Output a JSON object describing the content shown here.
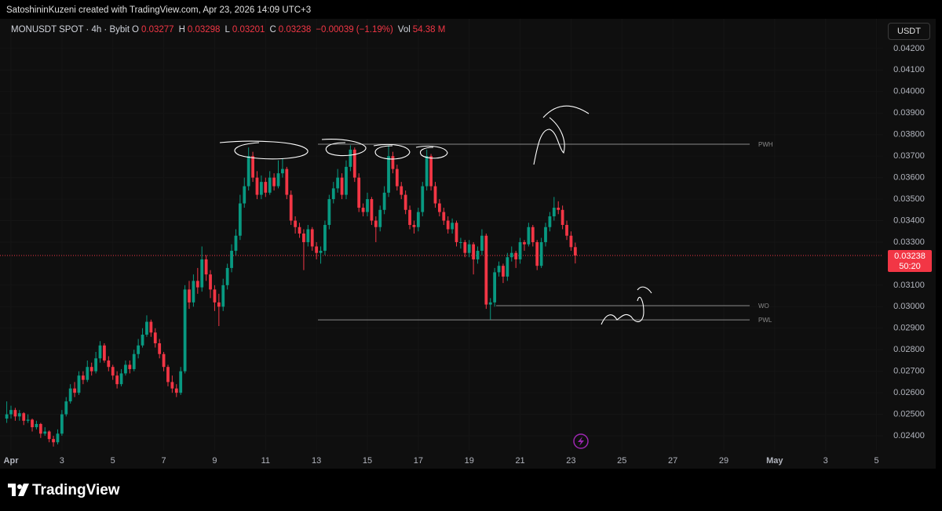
{
  "header": {
    "credit": "SatoshininKuzeni created with TradingView.com, Apr 23, 2026 14:09 UTC+3",
    "symbol": "MONUSDT SPOT · 4h · Bybit",
    "fields": [
      {
        "key": "O",
        "value": "0.03277"
      },
      {
        "key": "H",
        "value": "0.03298"
      },
      {
        "key": "L",
        "value": "0.03201"
      },
      {
        "key": "C",
        "value": "0.03238"
      }
    ],
    "change": "−0.00039 (−1.19%)",
    "vol_key": "Vol",
    "vol_value": "54.38 M",
    "unit": "USDT"
  },
  "footer": {
    "brand": "TradingView"
  },
  "chart_data": {
    "type": "candlestick",
    "up_color": "#089981",
    "down_color": "#f23645",
    "ylim": [
      0.02331,
      0.04338
    ],
    "yticks": [
      {
        "value": 0.042,
        "label": "0.04200"
      },
      {
        "value": 0.041,
        "label": "0.04100"
      },
      {
        "value": 0.04,
        "label": "0.04000"
      },
      {
        "value": 0.039,
        "label": "0.03900"
      },
      {
        "value": 0.038,
        "label": "0.03800"
      },
      {
        "value": 0.037,
        "label": "0.03700"
      },
      {
        "value": 0.036,
        "label": "0.03600"
      },
      {
        "value": 0.035,
        "label": "0.03500"
      },
      {
        "value": 0.034,
        "label": "0.03400"
      },
      {
        "value": 0.033,
        "label": "0.03300"
      },
      {
        "value": 0.031,
        "label": "0.03100"
      },
      {
        "value": 0.03,
        "label": "0.03000"
      },
      {
        "value": 0.029,
        "label": "0.02900"
      },
      {
        "value": 0.028,
        "label": "0.02800"
      },
      {
        "value": 0.027,
        "label": "0.02700"
      },
      {
        "value": 0.026,
        "label": "0.02600"
      },
      {
        "value": 0.025,
        "label": "0.02500"
      },
      {
        "value": 0.024,
        "label": "0.02400"
      }
    ],
    "xlim": [
      -0.432,
      34.26
    ],
    "xticks": [
      {
        "value": 0,
        "label": "Apr"
      },
      {
        "value": 2,
        "label": "3"
      },
      {
        "value": 4,
        "label": "5"
      },
      {
        "value": 6,
        "label": "7"
      },
      {
        "value": 8,
        "label": "9"
      },
      {
        "value": 10,
        "label": "11"
      },
      {
        "value": 12,
        "label": "13"
      },
      {
        "value": 14,
        "label": "15"
      },
      {
        "value": 16,
        "label": "17"
      },
      {
        "value": 18,
        "label": "19"
      },
      {
        "value": 20,
        "label": "21"
      },
      {
        "value": 22,
        "label": "23"
      },
      {
        "value": 24,
        "label": "25"
      },
      {
        "value": 26,
        "label": "27"
      },
      {
        "value": 28,
        "label": "29"
      },
      {
        "value": 30,
        "label": "May"
      },
      {
        "value": 32,
        "label": "3"
      },
      {
        "value": 34,
        "label": "5"
      }
    ],
    "last_price": 0.03238,
    "countdown": "50:20",
    "levels": [
      {
        "label": "PWH",
        "value": 0.03755
      },
      {
        "label": "WO",
        "value": 0.03005
      },
      {
        "label": "PWL",
        "value": 0.02939
      }
    ],
    "ohlc": [
      [
        0.0248,
        0.0256,
        0.0246,
        0.025
      ],
      [
        0.025,
        0.0254,
        0.0248,
        0.0252
      ],
      [
        0.0252,
        0.0253,
        0.0247,
        0.0249
      ],
      [
        0.0249,
        0.0252,
        0.0247,
        0.02505
      ],
      [
        0.02505,
        0.0251,
        0.0245,
        0.0247
      ],
      [
        0.0247,
        0.025,
        0.0246,
        0.02475
      ],
      [
        0.02475,
        0.0248,
        0.0242,
        0.0244
      ],
      [
        0.0244,
        0.0247,
        0.0243,
        0.02455
      ],
      [
        0.02455,
        0.0246,
        0.0239,
        0.0241
      ],
      [
        0.0241,
        0.0244,
        0.024,
        0.0242
      ],
      [
        0.0242,
        0.02425,
        0.0237,
        0.02385
      ],
      [
        0.02385,
        0.024,
        0.0235,
        0.0237
      ],
      [
        0.0237,
        0.0243,
        0.0236,
        0.0241
      ],
      [
        0.0241,
        0.0252,
        0.024,
        0.025
      ],
      [
        0.025,
        0.0258,
        0.0249,
        0.0256
      ],
      [
        0.0256,
        0.0264,
        0.0255,
        0.0262
      ],
      [
        0.0262,
        0.0265,
        0.0258,
        0.026
      ],
      [
        0.026,
        0.027,
        0.0259,
        0.0268
      ],
      [
        0.0268,
        0.027,
        0.0264,
        0.0266
      ],
      [
        0.0266,
        0.0275,
        0.0265,
        0.0272
      ],
      [
        0.0272,
        0.0274,
        0.0268,
        0.027
      ],
      [
        0.027,
        0.0279,
        0.0269,
        0.0276
      ],
      [
        0.0276,
        0.0284,
        0.0274,
        0.0282
      ],
      [
        0.0282,
        0.0283,
        0.0274,
        0.0275
      ],
      [
        0.0275,
        0.0277,
        0.027,
        0.0272
      ],
      [
        0.0272,
        0.0273,
        0.0266,
        0.0268
      ],
      [
        0.0268,
        0.027,
        0.0262,
        0.0264
      ],
      [
        0.0264,
        0.0271,
        0.0263,
        0.0269
      ],
      [
        0.0269,
        0.0275,
        0.0268,
        0.0273
      ],
      [
        0.0273,
        0.0275,
        0.0269,
        0.0271
      ],
      [
        0.0271,
        0.028,
        0.027,
        0.0278
      ],
      [
        0.0278,
        0.0285,
        0.0276,
        0.0282
      ],
      [
        0.0282,
        0.029,
        0.0281,
        0.0287
      ],
      [
        0.0287,
        0.0296,
        0.0286,
        0.0293
      ],
      [
        0.0293,
        0.0294,
        0.0286,
        0.0288
      ],
      [
        0.0288,
        0.029,
        0.0281,
        0.0283
      ],
      [
        0.0283,
        0.0285,
        0.0276,
        0.0278
      ],
      [
        0.0278,
        0.0279,
        0.027,
        0.0272
      ],
      [
        0.0272,
        0.0273,
        0.0263,
        0.0265
      ],
      [
        0.0265,
        0.0268,
        0.026,
        0.0262
      ],
      [
        0.0262,
        0.0264,
        0.0258,
        0.026
      ],
      [
        0.026,
        0.0272,
        0.0259,
        0.027
      ],
      [
        0.027,
        0.031,
        0.0269,
        0.0308
      ],
      [
        0.0308,
        0.0312,
        0.0299,
        0.0302
      ],
      [
        0.0302,
        0.0315,
        0.03,
        0.0312
      ],
      [
        0.0312,
        0.0318,
        0.0306,
        0.0309
      ],
      [
        0.0309,
        0.0328,
        0.0307,
        0.0322
      ],
      [
        0.0322,
        0.0324,
        0.0312,
        0.0315
      ],
      [
        0.0315,
        0.0317,
        0.0304,
        0.0308
      ],
      [
        0.0308,
        0.031,
        0.0298,
        0.0302
      ],
      [
        0.0302,
        0.0306,
        0.0291,
        0.03
      ],
      [
        0.03,
        0.0313,
        0.0298,
        0.031
      ],
      [
        0.031,
        0.032,
        0.0308,
        0.0318
      ],
      [
        0.0318,
        0.0329,
        0.0316,
        0.0326
      ],
      [
        0.0326,
        0.0336,
        0.0324,
        0.0333
      ],
      [
        0.0333,
        0.0352,
        0.0331,
        0.0348
      ],
      [
        0.0348,
        0.036,
        0.0346,
        0.0356
      ],
      [
        0.0356,
        0.0374,
        0.0354,
        0.037
      ],
      [
        0.037,
        0.0372,
        0.0358,
        0.036
      ],
      [
        0.036,
        0.0363,
        0.035,
        0.0352
      ],
      [
        0.0352,
        0.0361,
        0.035,
        0.0358
      ],
      [
        0.0358,
        0.036,
        0.0351,
        0.0353
      ],
      [
        0.0353,
        0.0363,
        0.0352,
        0.036
      ],
      [
        0.036,
        0.0362,
        0.0354,
        0.0356
      ],
      [
        0.0356,
        0.0368,
        0.0355,
        0.0362
      ],
      [
        0.0362,
        0.0369,
        0.036,
        0.0364
      ],
      [
        0.0364,
        0.0365,
        0.035,
        0.0352
      ],
      [
        0.0352,
        0.0354,
        0.0338,
        0.034
      ],
      [
        0.034,
        0.0342,
        0.0334,
        0.0337
      ],
      [
        0.0337,
        0.0339,
        0.0332,
        0.0334
      ],
      [
        0.0334,
        0.0336,
        0.0317,
        0.033
      ],
      [
        0.033,
        0.0338,
        0.0328,
        0.0336
      ],
      [
        0.0336,
        0.0337,
        0.0326,
        0.0328
      ],
      [
        0.0328,
        0.033,
        0.0322,
        0.0325
      ],
      [
        0.0325,
        0.0328,
        0.032,
        0.0326
      ],
      [
        0.0326,
        0.034,
        0.0324,
        0.0338
      ],
      [
        0.0338,
        0.0352,
        0.0336,
        0.035
      ],
      [
        0.035,
        0.0358,
        0.0348,
        0.0355
      ],
      [
        0.0355,
        0.0364,
        0.0353,
        0.036
      ],
      [
        0.036,
        0.0362,
        0.035,
        0.0352
      ],
      [
        0.0352,
        0.0368,
        0.035,
        0.0365
      ],
      [
        0.0365,
        0.0375,
        0.0363,
        0.0373
      ],
      [
        0.0373,
        0.0374,
        0.0358,
        0.036
      ],
      [
        0.036,
        0.0362,
        0.0344,
        0.0346
      ],
      [
        0.0346,
        0.0348,
        0.0342,
        0.0344
      ],
      [
        0.0344,
        0.0353,
        0.0342,
        0.035
      ],
      [
        0.035,
        0.0351,
        0.0338,
        0.034
      ],
      [
        0.034,
        0.0342,
        0.033,
        0.0337
      ],
      [
        0.0337,
        0.0347,
        0.0335,
        0.0345
      ],
      [
        0.0345,
        0.0356,
        0.0343,
        0.0353
      ],
      [
        0.0353,
        0.0375,
        0.0351,
        0.037
      ],
      [
        0.037,
        0.0372,
        0.0362,
        0.0364
      ],
      [
        0.0364,
        0.0366,
        0.0354,
        0.0356
      ],
      [
        0.0356,
        0.0358,
        0.035,
        0.0352
      ],
      [
        0.0352,
        0.0354,
        0.0343,
        0.0345
      ],
      [
        0.0345,
        0.0347,
        0.0336,
        0.0338
      ],
      [
        0.0338,
        0.034,
        0.0334,
        0.0337
      ],
      [
        0.0337,
        0.0346,
        0.0335,
        0.0344
      ],
      [
        0.0344,
        0.0358,
        0.0342,
        0.0356
      ],
      [
        0.0356,
        0.0373,
        0.0354,
        0.037
      ],
      [
        0.037,
        0.0371,
        0.0354,
        0.0356
      ],
      [
        0.0356,
        0.0358,
        0.0346,
        0.0348
      ],
      [
        0.0348,
        0.035,
        0.0342,
        0.0344
      ],
      [
        0.0344,
        0.0346,
        0.0338,
        0.034
      ],
      [
        0.034,
        0.0342,
        0.0334,
        0.0336
      ],
      [
        0.0336,
        0.0341,
        0.0334,
        0.0339
      ],
      [
        0.0339,
        0.034,
        0.0328,
        0.033
      ],
      [
        0.033,
        0.0332,
        0.0327,
        0.033
      ],
      [
        0.033,
        0.0331,
        0.0323,
        0.0325
      ],
      [
        0.0325,
        0.0331,
        0.0323,
        0.0329
      ],
      [
        0.0329,
        0.033,
        0.0315,
        0.0322
      ],
      [
        0.0322,
        0.0328,
        0.032,
        0.0326
      ],
      [
        0.0326,
        0.0336,
        0.0324,
        0.0333
      ],
      [
        0.0333,
        0.0334,
        0.0299,
        0.0301
      ],
      [
        0.0301,
        0.0304,
        0.0294,
        0.0302
      ],
      [
        0.0302,
        0.0318,
        0.03,
        0.0316
      ],
      [
        0.0316,
        0.0321,
        0.0314,
        0.0319
      ],
      [
        0.0319,
        0.032,
        0.0311,
        0.0314
      ],
      [
        0.0314,
        0.0325,
        0.0312,
        0.0323
      ],
      [
        0.0323,
        0.0328,
        0.0321,
        0.0325
      ],
      [
        0.0325,
        0.0326,
        0.0318,
        0.0322
      ],
      [
        0.0322,
        0.0332,
        0.032,
        0.033
      ],
      [
        0.033,
        0.0331,
        0.0326,
        0.0329
      ],
      [
        0.0329,
        0.0339,
        0.0328,
        0.0337
      ],
      [
        0.0337,
        0.0338,
        0.0328,
        0.033
      ],
      [
        0.033,
        0.0331,
        0.0317,
        0.0319
      ],
      [
        0.0319,
        0.0332,
        0.0318,
        0.033
      ],
      [
        0.033,
        0.0339,
        0.0328,
        0.0337
      ],
      [
        0.0337,
        0.0344,
        0.0335,
        0.0342
      ],
      [
        0.0342,
        0.0351,
        0.034,
        0.0346
      ],
      [
        0.0346,
        0.0349,
        0.0343,
        0.0345
      ],
      [
        0.0345,
        0.0347,
        0.0336,
        0.0338
      ],
      [
        0.0338,
        0.034,
        0.0331,
        0.0333
      ],
      [
        0.0333,
        0.0335,
        0.0326,
        0.03277
      ],
      [
        0.03277,
        0.03298,
        0.03201,
        0.03238
      ]
    ]
  }
}
